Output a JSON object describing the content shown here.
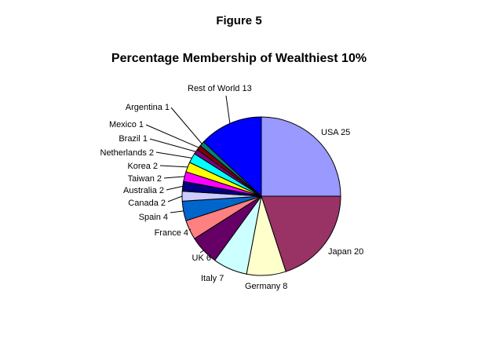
{
  "figure_label": "Figure 5",
  "chart_data": {
    "type": "pie",
    "title": "Percentage Membership of Wealthiest 10%",
    "slices": [
      {
        "label": "USA",
        "value": 25,
        "color": "#9999ff"
      },
      {
        "label": "Japan",
        "value": 20,
        "color": "#993366"
      },
      {
        "label": "Germany",
        "value": 8,
        "color": "#ffffcc"
      },
      {
        "label": "Italy",
        "value": 7,
        "color": "#ccffff"
      },
      {
        "label": "UK",
        "value": 6,
        "color": "#660066"
      },
      {
        "label": "France",
        "value": 4,
        "color": "#ff8080"
      },
      {
        "label": "Spain",
        "value": 4,
        "color": "#0066cc"
      },
      {
        "label": "Canada",
        "value": 2,
        "color": "#ccccff"
      },
      {
        "label": "Australia",
        "value": 2,
        "color": "#000080"
      },
      {
        "label": "Taiwan",
        "value": 2,
        "color": "#ff00ff"
      },
      {
        "label": "Korea",
        "value": 2,
        "color": "#ffff00"
      },
      {
        "label": "Netherlands",
        "value": 2,
        "color": "#00ffff"
      },
      {
        "label": "Brazil",
        "value": 1,
        "color": "#800080"
      },
      {
        "label": "Mexico",
        "value": 1,
        "color": "#800000"
      },
      {
        "label": "Argentina",
        "value": 1,
        "color": "#008080"
      },
      {
        "label": "Rest of World",
        "value": 13,
        "color": "#0000ff"
      }
    ]
  }
}
